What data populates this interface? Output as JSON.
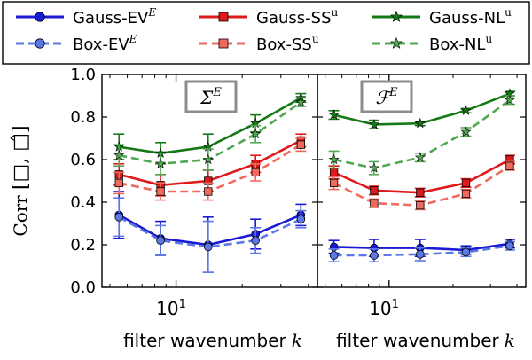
{
  "chart_data": [
    {
      "type": "line",
      "panel_label": "Σ",
      "panel_label_sup": "E",
      "ylabel_main": "Corr",
      "ylabel_args": "[□, □̂]",
      "xlabel": "filter wavenumber",
      "xlabel_var": "k",
      "x_scale": "log",
      "xlim": [
        4.6,
        44
      ],
      "ylim": [
        0.0,
        1.0
      ],
      "yticks": [
        "0.0",
        "0.2",
        "0.4",
        "0.6",
        "0.8",
        "1.0"
      ],
      "xtick_label_base": "10",
      "xtick_label_exp": "1",
      "x": [
        5.5,
        8.5,
        14,
        23,
        37
      ],
      "series": [
        {
          "name": "Gauss-EV^E",
          "values": [
            0.34,
            0.23,
            0.2,
            0.25,
            0.34
          ],
          "err": [
            0.11,
            0.08,
            0.13,
            0.07,
            0.05
          ]
        },
        {
          "name": "Box-EV^E",
          "values": [
            0.33,
            0.22,
            0.19,
            0.22,
            0.32
          ],
          "err": [
            0.09,
            0.07,
            0.12,
            0.06,
            0.04
          ]
        },
        {
          "name": "Gauss-SS^u",
          "values": [
            0.53,
            0.48,
            0.5,
            0.58,
            0.69
          ],
          "err": [
            0.05,
            0.05,
            0.05,
            0.04,
            0.03
          ]
        },
        {
          "name": "Box-SS^u",
          "values": [
            0.49,
            0.45,
            0.45,
            0.54,
            0.67
          ],
          "err": [
            0.05,
            0.04,
            0.04,
            0.04,
            0.03
          ]
        },
        {
          "name": "Gauss-NL^u",
          "values": [
            0.66,
            0.63,
            0.66,
            0.77,
            0.89
          ],
          "err": [
            0.06,
            0.05,
            0.06,
            0.04,
            0.02
          ]
        },
        {
          "name": "Box-NL^u",
          "values": [
            0.62,
            0.58,
            0.6,
            0.72,
            0.87
          ],
          "err": [
            0.05,
            0.05,
            0.05,
            0.04,
            0.02
          ]
        }
      ]
    },
    {
      "type": "line",
      "panel_label": "ℱ",
      "panel_label_sup": "E",
      "xlabel": "filter wavenumber",
      "xlabel_var": "k",
      "x_scale": "log",
      "xlim": [
        4.6,
        44
      ],
      "ylim": [
        0.0,
        1.0
      ],
      "xtick_label_base": "10",
      "xtick_label_exp": "1",
      "x": [
        5.5,
        8.5,
        14,
        23,
        37
      ],
      "series": [
        {
          "name": "Gauss-EV^E",
          "values": [
            0.19,
            0.185,
            0.185,
            0.175,
            0.205
          ],
          "err": [
            0.03,
            0.04,
            0.04,
            0.02,
            0.02
          ]
        },
        {
          "name": "Box-EV^E",
          "values": [
            0.15,
            0.15,
            0.155,
            0.165,
            0.195
          ],
          "err": [
            0.03,
            0.03,
            0.03,
            0.02,
            0.02
          ]
        },
        {
          "name": "Gauss-SS^u",
          "values": [
            0.54,
            0.455,
            0.445,
            0.49,
            0.6
          ],
          "err": [
            0.03,
            0.02,
            0.02,
            0.02,
            0.02
          ]
        },
        {
          "name": "Box-SS^u",
          "values": [
            0.49,
            0.395,
            0.385,
            0.44,
            0.57
          ],
          "err": [
            0.03,
            0.02,
            0.02,
            0.02,
            0.02
          ]
        },
        {
          "name": "Gauss-NL^u",
          "values": [
            0.81,
            0.765,
            0.77,
            0.83,
            0.91
          ],
          "err": [
            0.02,
            0.02,
            0.01,
            0.01,
            0.01
          ]
        },
        {
          "name": "Box-NL^u",
          "values": [
            0.6,
            0.56,
            0.61,
            0.73,
            0.88
          ],
          "err": [
            0.04,
            0.03,
            0.02,
            0.02,
            0.02
          ]
        }
      ]
    }
  ],
  "legend": {
    "items": [
      {
        "base": "Gauss-EV",
        "sup": "E",
        "color": "#1a1ad6",
        "marker": "circle",
        "dashed": false
      },
      {
        "base": "Box-EV",
        "sup": "E",
        "color": "#5b78e6",
        "marker": "circle",
        "dashed": true
      },
      {
        "base": "Gauss-SS",
        "sup": "u",
        "color": "#e01a1a",
        "marker": "square",
        "dashed": false
      },
      {
        "base": "Box-SS",
        "sup": "u",
        "color": "#ef6a5c",
        "marker": "square",
        "dashed": true
      },
      {
        "base": "Gauss-NL",
        "sup": "u",
        "color": "#157a15",
        "marker": "star",
        "dashed": false
      },
      {
        "base": "Box-NL",
        "sup": "u",
        "color": "#52a852",
        "marker": "star",
        "dashed": true
      }
    ]
  }
}
